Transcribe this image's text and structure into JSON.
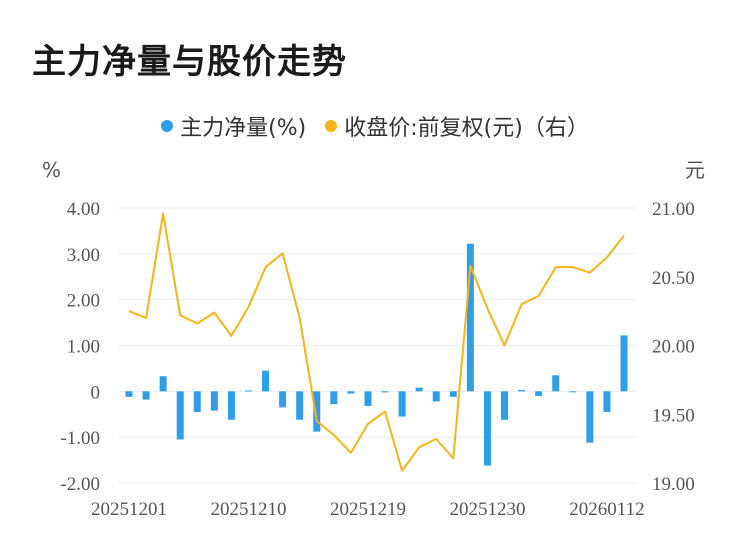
{
  "title": "主力净量与股价走势",
  "chart_data": {
    "type": "bar+line",
    "legend": [
      {
        "name": "主力净量(%)",
        "color": "#2f9ee8"
      },
      {
        "name": "收盘价:前复权(元)（右）",
        "color": "#f5b518"
      }
    ],
    "y_left_unit": "%",
    "y_right_unit": "元",
    "y_left_ticks": [
      "4.00",
      "3.00",
      "2.00",
      "1.00",
      "0",
      "-1.00",
      "-2.00"
    ],
    "y_right_ticks": [
      "21.00",
      "20.50",
      "20.00",
      "19.50",
      "19.00"
    ],
    "y_left_range": [
      -2,
      4
    ],
    "y_right_range": [
      19,
      21
    ],
    "x_tick_labels": [
      "20251201",
      "20251210",
      "20251219",
      "20251230",
      "20260112"
    ],
    "x_tick_positions": [
      0,
      7,
      14,
      21,
      28
    ],
    "bar_series": {
      "name": "主力净量(%)",
      "color": "#2f9ee8",
      "values": [
        -0.12,
        -0.18,
        0.33,
        -1.05,
        -0.45,
        -0.42,
        -0.62,
        0.02,
        0.45,
        -0.35,
        -0.62,
        -0.88,
        -0.28,
        -0.05,
        -0.32,
        -0.02,
        -0.55,
        0.08,
        -0.22,
        -0.12,
        3.22,
        -1.62,
        -0.62,
        0.03,
        -0.1,
        0.35,
        -0.02,
        -1.12,
        -0.45,
        1.22
      ]
    },
    "line_series": {
      "name": "收盘价:前复权(元)（右）",
      "color": "#f5b518",
      "values": [
        20.25,
        20.2,
        20.96,
        20.22,
        20.16,
        20.24,
        20.07,
        20.28,
        20.57,
        20.67,
        20.2,
        19.45,
        19.35,
        19.22,
        19.43,
        19.52,
        19.09,
        19.26,
        19.32,
        19.18,
        20.58,
        20.27,
        20.0,
        20.3,
        20.36,
        20.57,
        20.57,
        20.53,
        20.64,
        20.8
      ]
    }
  }
}
